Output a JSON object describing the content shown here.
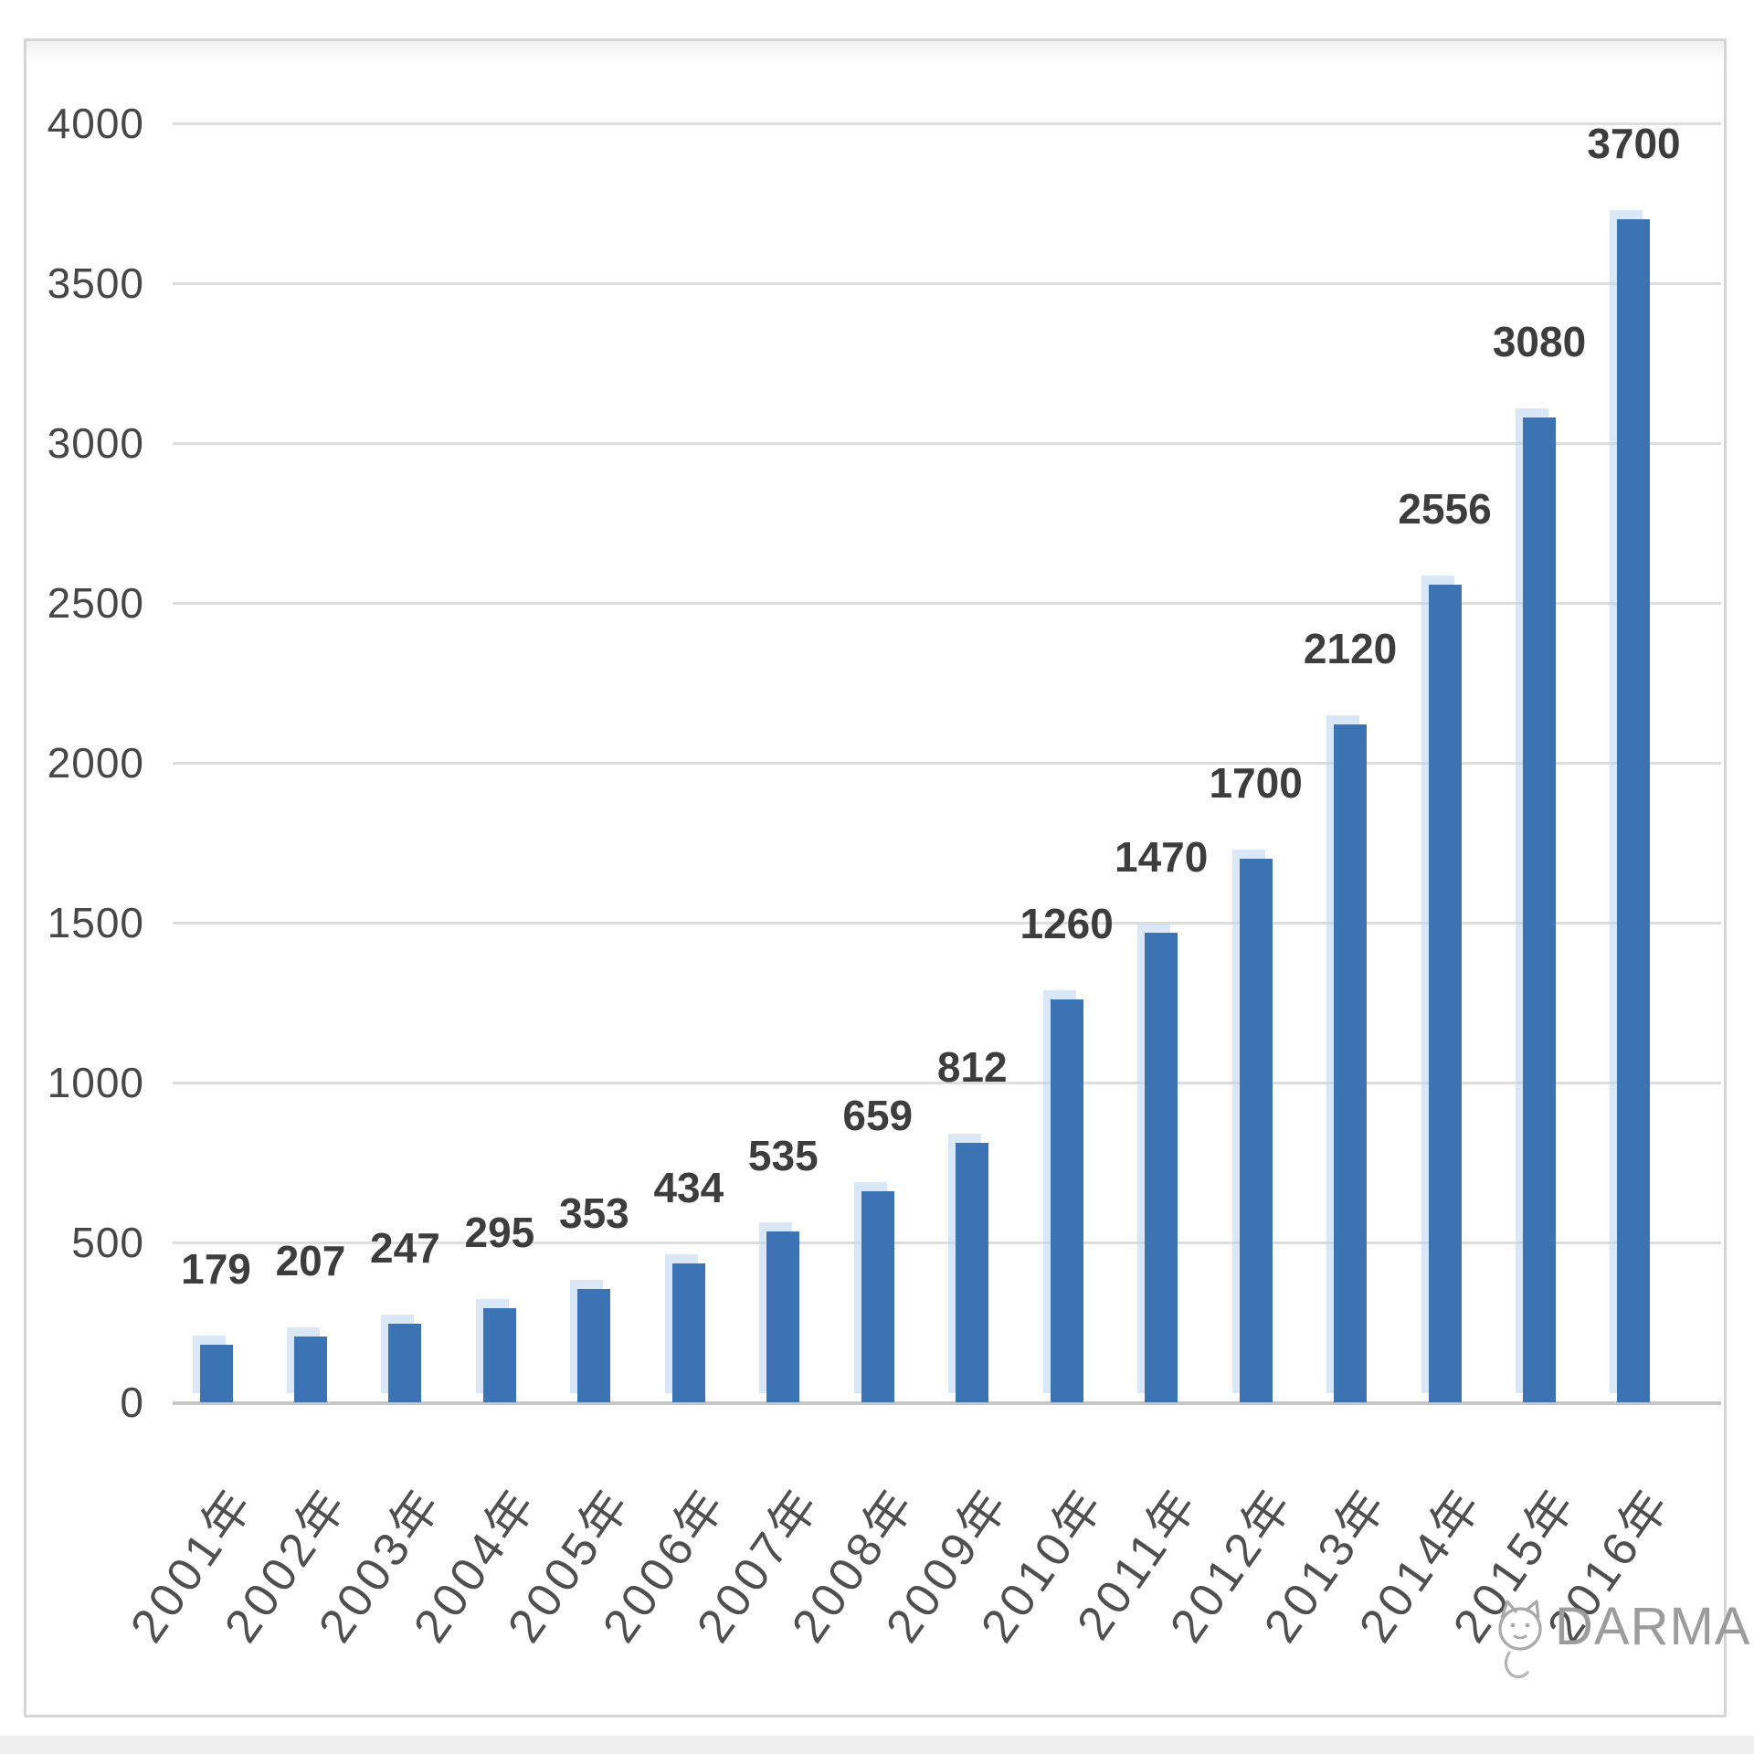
{
  "watermark": {
    "text": "DARMA",
    "icon": "cat-doodle-icon"
  },
  "chart_data": {
    "type": "bar",
    "title": "",
    "xlabel": "",
    "ylabel": "",
    "categories": [
      "2001年",
      "2002年",
      "2003年",
      "2004年",
      "2005年",
      "2006年",
      "2007年",
      "2008年",
      "2009年",
      "2010年",
      "2011年",
      "2012年",
      "2013年",
      "2014年",
      "2015年",
      "2016年"
    ],
    "values": [
      179,
      207,
      247,
      295,
      353,
      434,
      535,
      659,
      812,
      1260,
      1470,
      1700,
      2120,
      2556,
      3080,
      3700
    ],
    "yticks": [
      4000,
      3500,
      3000,
      2500,
      2000,
      1500,
      1000,
      500,
      0
    ],
    "ylim": [
      0,
      4000
    ],
    "grid": true,
    "legend": false,
    "bar_color": "#3c73b4",
    "grid_color": "#dddddd",
    "value_label_color": "#3d3d3d",
    "axis_label_color": "#474747"
  }
}
